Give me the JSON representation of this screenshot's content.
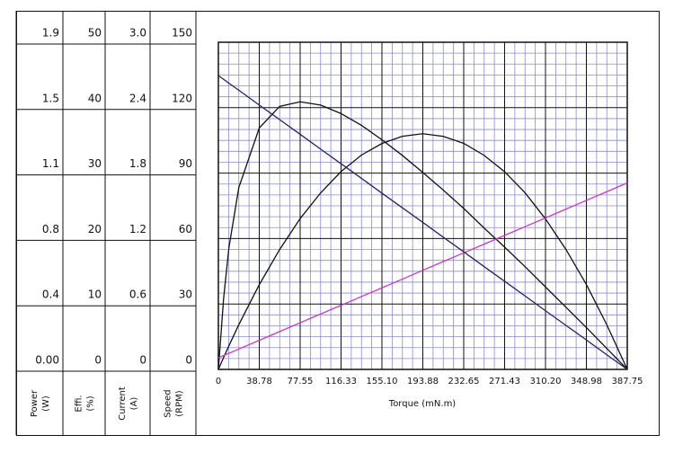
{
  "chart_data": {
    "type": "line",
    "x_label": "Torque (mN.m)",
    "xlim": [
      0,
      387.75
    ],
    "xticks": [
      0,
      38.78,
      77.55,
      116.33,
      {
        "value": 155.1,
        "label": "155.10"
      },
      193.88,
      232.65,
      271.43,
      {
        "value": 310.2,
        "label": "310.20"
      },
      348.98,
      387.75
    ],
    "x": [
      0,
      5,
      10,
      19.39,
      38.78,
      58.16,
      77.55,
      96.94,
      116.33,
      135.71,
      155.1,
      174.49,
      193.88,
      213.26,
      232.65,
      252.04,
      271.43,
      290.81,
      310.2,
      329.59,
      348.98,
      368.36,
      387.75
    ],
    "grid": true,
    "minor_grid": {
      "x": 4,
      "y": 6
    },
    "y_axes": [
      {
        "label": "Power",
        "unit": "(W)",
        "color": "#111111",
        "ylim": [
          0,
          1.9
        ],
        "yticks": [
          {
            "value": 0,
            "label": "0.00"
          },
          {
            "value": 0.38,
            "label": "0.4"
          },
          {
            "value": 0.76,
            "label": "0.8"
          },
          {
            "value": 1.14,
            "label": "1.1"
          },
          {
            "value": 1.52,
            "label": "1.5"
          },
          1.9
        ],
        "values": [
          0,
          0.07,
          0.137,
          0.26,
          0.492,
          0.697,
          0.876,
          1.025,
          1.149,
          1.245,
          1.312,
          1.354,
          1.369,
          1.353,
          1.313,
          1.243,
          1.148,
          1.026,
          0.874,
          0.697,
          0.493,
          0.259,
          0
        ]
      },
      {
        "label": "Effi.",
        "unit": "(%)",
        "color": "#111111",
        "ylim": [
          0,
          50
        ],
        "yticks": [
          0,
          10,
          20,
          30,
          40,
          50
        ],
        "values": [
          0,
          10.9,
          18.6,
          27.8,
          36.9,
          40.2,
          40.9,
          40.4,
          39.1,
          37.3,
          35.1,
          32.7,
          30.1,
          27.4,
          24.6,
          21.6,
          18.7,
          15.7,
          12.6,
          9.5,
          6.4,
          3.2,
          0
        ]
      },
      {
        "label": "Current",
        "unit": "(A)",
        "color": "#cc33cc",
        "ylim": [
          0,
          3
        ],
        "yticks": [
          0,
          0.6,
          1.2,
          1.8,
          2.4,
          {
            "value": 3,
            "label": "3.0"
          }
        ],
        "values": [
          0.107,
          0.128,
          0.148,
          0.187,
          0.267,
          0.347,
          0.428,
          0.508,
          0.588,
          0.668,
          0.748,
          0.828,
          0.909,
          0.989,
          1.069,
          1.149,
          1.229,
          1.309,
          1.389,
          1.47,
          1.55,
          1.63,
          1.71
        ]
      },
      {
        "label": "Speed",
        "unit": "(RPM)",
        "color": "#22226e",
        "ylim": [
          0,
          150
        ],
        "yticks": [
          0,
          30,
          60,
          90,
          120,
          150
        ],
        "values": [
          134.7,
          133,
          131.2,
          128,
          121.2,
          114.5,
          107.8,
          101,
          94.3,
          87.6,
          80.8,
          74.1,
          67.4,
          60.6,
          53.9,
          47.1,
          40.4,
          33.7,
          26.9,
          20.2,
          13.5,
          6.7,
          0
        ]
      }
    ]
  }
}
